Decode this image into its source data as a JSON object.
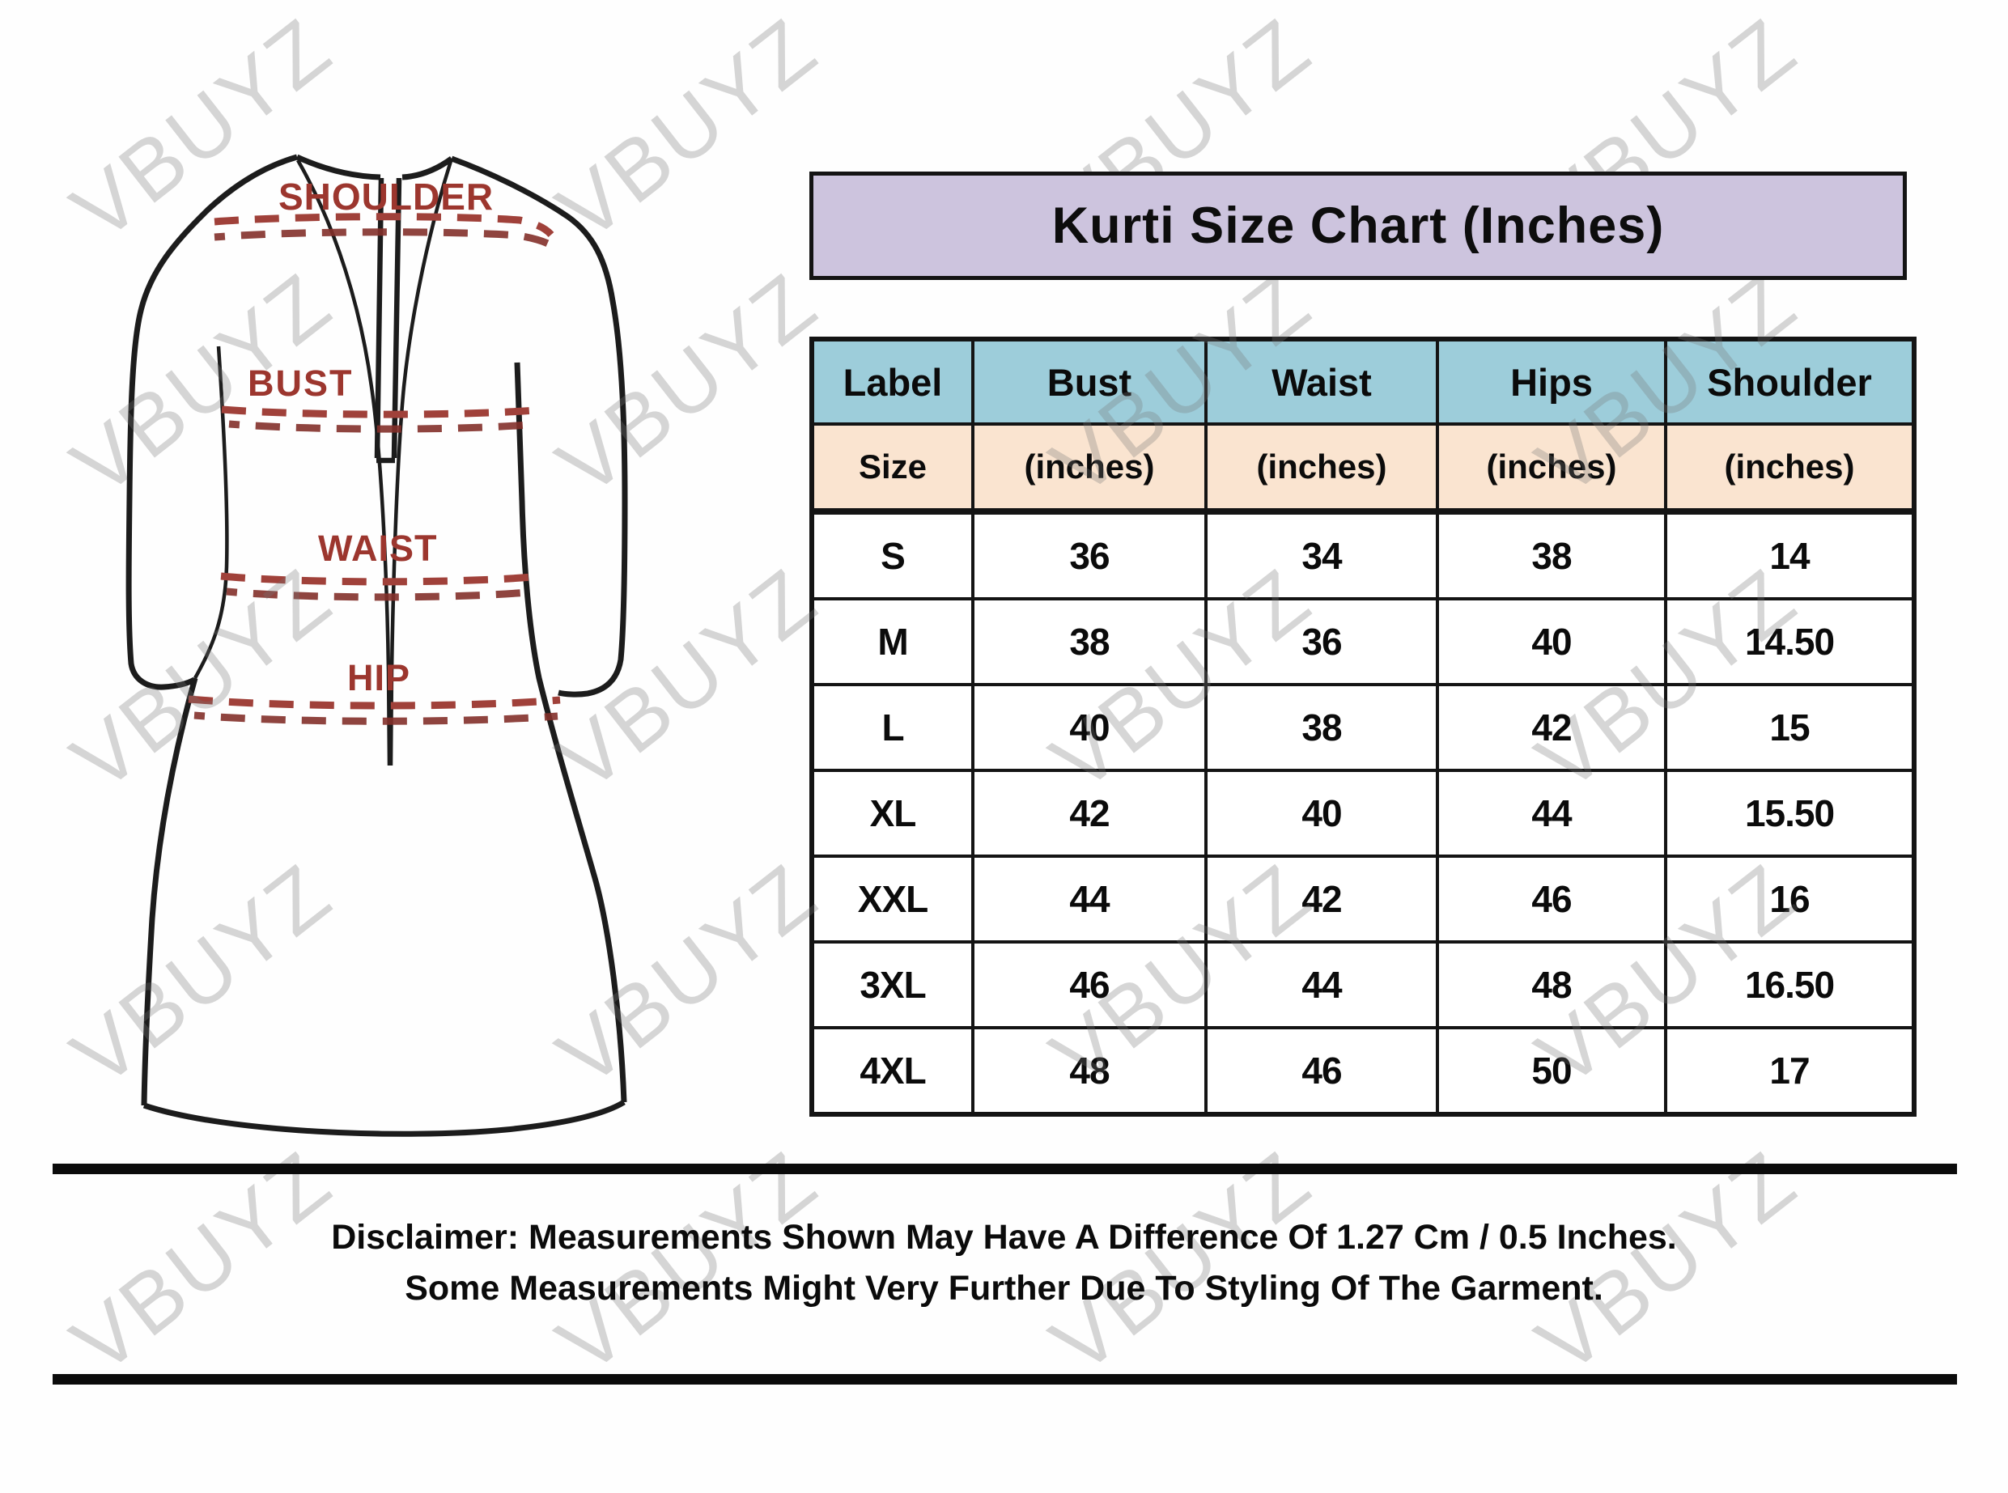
{
  "title": "Kurti Size Chart (Inches)",
  "watermark": {
    "text": "VBUYZ"
  },
  "colors": {
    "title_banner_bg": "#cdc4de",
    "header_bg": "#9dcdda",
    "subheader_bg": "#fae4d0",
    "table_border": "#141414",
    "garment_label_red": "#9c362e",
    "garment_dash_red": "#a0413a"
  },
  "garment": {
    "labels": [
      "SHOULDER",
      "BUST",
      "WAIST",
      "HIP"
    ]
  },
  "size_table": {
    "columns": [
      "Label",
      "Bust",
      "Waist",
      "Hips",
      "Shoulder"
    ],
    "subheader": [
      "Size",
      "(inches)",
      "(inches)",
      "(inches)",
      "(inches)"
    ],
    "rows": [
      {
        "label": "S",
        "bust": "36",
        "waist": "34",
        "hips": "38",
        "shoulder": "14"
      },
      {
        "label": "M",
        "bust": "38",
        "waist": "36",
        "hips": "40",
        "shoulder": "14.50"
      },
      {
        "label": "L",
        "bust": "40",
        "waist": "38",
        "hips": "42",
        "shoulder": "15"
      },
      {
        "label": "XL",
        "bust": "42",
        "waist": "40",
        "hips": "44",
        "shoulder": "15.50"
      },
      {
        "label": "XXL",
        "bust": "44",
        "waist": "42",
        "hips": "46",
        "shoulder": "16"
      },
      {
        "label": "3XL",
        "bust": "46",
        "waist": "44",
        "hips": "48",
        "shoulder": "16.50"
      },
      {
        "label": "4XL",
        "bust": "48",
        "waist": "46",
        "hips": "50",
        "shoulder": "17"
      }
    ]
  },
  "disclaimer": {
    "line1": "Disclaimer: Measurements Shown May Have A Difference Of 1.27 Cm / 0.5 Inches.",
    "line2": "Some Measurements Might Very Further Due To Styling Of The Garment."
  },
  "chart_data": {
    "type": "table",
    "title": "Kurti Size Chart (Inches)",
    "columns": [
      "Label Size",
      "Bust (inches)",
      "Waist (inches)",
      "Hips (inches)",
      "Shoulder (inches)"
    ],
    "rows": [
      [
        "S",
        36,
        34,
        38,
        14
      ],
      [
        "M",
        38,
        36,
        40,
        14.5
      ],
      [
        "L",
        40,
        38,
        42,
        15
      ],
      [
        "XL",
        42,
        40,
        44,
        15.5
      ],
      [
        "XXL",
        44,
        42,
        46,
        16
      ],
      [
        "3XL",
        46,
        44,
        48,
        16.5
      ],
      [
        "4XL",
        48,
        46,
        50,
        17
      ]
    ]
  }
}
